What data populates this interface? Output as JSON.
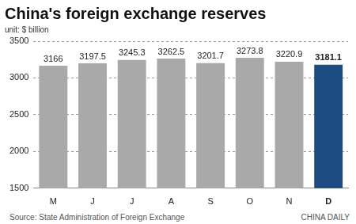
{
  "chart_data": {
    "type": "bar",
    "title": "China's foreign exchange reserves",
    "subtitle": "unit: $ billion",
    "categories": [
      "M",
      "J",
      "J",
      "A",
      "S",
      "O",
      "N",
      "D"
    ],
    "values": [
      3166,
      3197.5,
      3245.3,
      3262.5,
      3201.7,
      3273.8,
      3220.9,
      3181.1
    ],
    "colors": [
      "#a9a9a9",
      "#a9a9a9",
      "#a9a9a9",
      "#a9a9a9",
      "#a9a9a9",
      "#a9a9a9",
      "#a9a9a9",
      "#1c4b82"
    ],
    "ylim": [
      1500,
      3500
    ],
    "yticks": [
      1500,
      2000,
      2500,
      3000,
      3500
    ],
    "grid": true,
    "data_labels": true,
    "annotations": [
      "Source: State Administration of Foreign Exchange",
      "CHINA DAILY"
    ]
  }
}
